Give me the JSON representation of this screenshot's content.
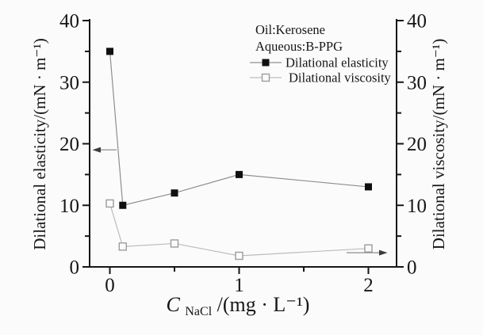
{
  "chart_data": {
    "type": "line",
    "title": "",
    "annotations": [
      "Oil:Kerosene",
      "Aqueous:B-PPG"
    ],
    "x": [
      0,
      0.1,
      0.5,
      1,
      2
    ],
    "series": [
      {
        "name": "Dilational elasticity",
        "axis": "left",
        "marker": "filled-square",
        "values": [
          35,
          10,
          12,
          15,
          13
        ]
      },
      {
        "name": "Dilational viscosity",
        "axis": "right",
        "marker": "open-square",
        "values": [
          10.3,
          3.3,
          3.8,
          1.8,
          3.0
        ]
      }
    ],
    "xlabel": {
      "variable": "C",
      "subscript": "NaCl",
      "rest": "/(mg · L⁻¹)"
    },
    "ylabel_left": "Dilational elasticity/(mN · m⁻¹)",
    "ylabel_right": "Dilational viscosity/(mN · m⁻¹)",
    "xlim": [
      -0.15,
      2.23
    ],
    "ylim": [
      0,
      40
    ],
    "x_major_ticks": [
      0,
      1,
      2
    ],
    "x_major_tick_labels": [
      "0",
      "1",
      "2"
    ],
    "x_minor_ticks": [
      0.5,
      1.5
    ],
    "y_major_ticks": [
      0,
      10,
      20,
      30,
      40
    ],
    "y_major_tick_labels": [
      "0",
      "10",
      "20",
      "30",
      "40"
    ],
    "y_minor_ticks": [
      5,
      15,
      25,
      35
    ],
    "grid": false,
    "legend_position": "inside-top-right",
    "axis_arrows": [
      {
        "direction": "left",
        "y_value": 19
      },
      {
        "direction": "right",
        "y_value": 2.3
      }
    ],
    "colors": {
      "axis": "#161616",
      "elasticity_marker": "#101010",
      "elasticity_line": "#8e8e8e",
      "viscosity_marker_stroke": "#9c9c9c",
      "viscosity_line": "#bcbcbc",
      "background": "#fbfbfb"
    }
  }
}
